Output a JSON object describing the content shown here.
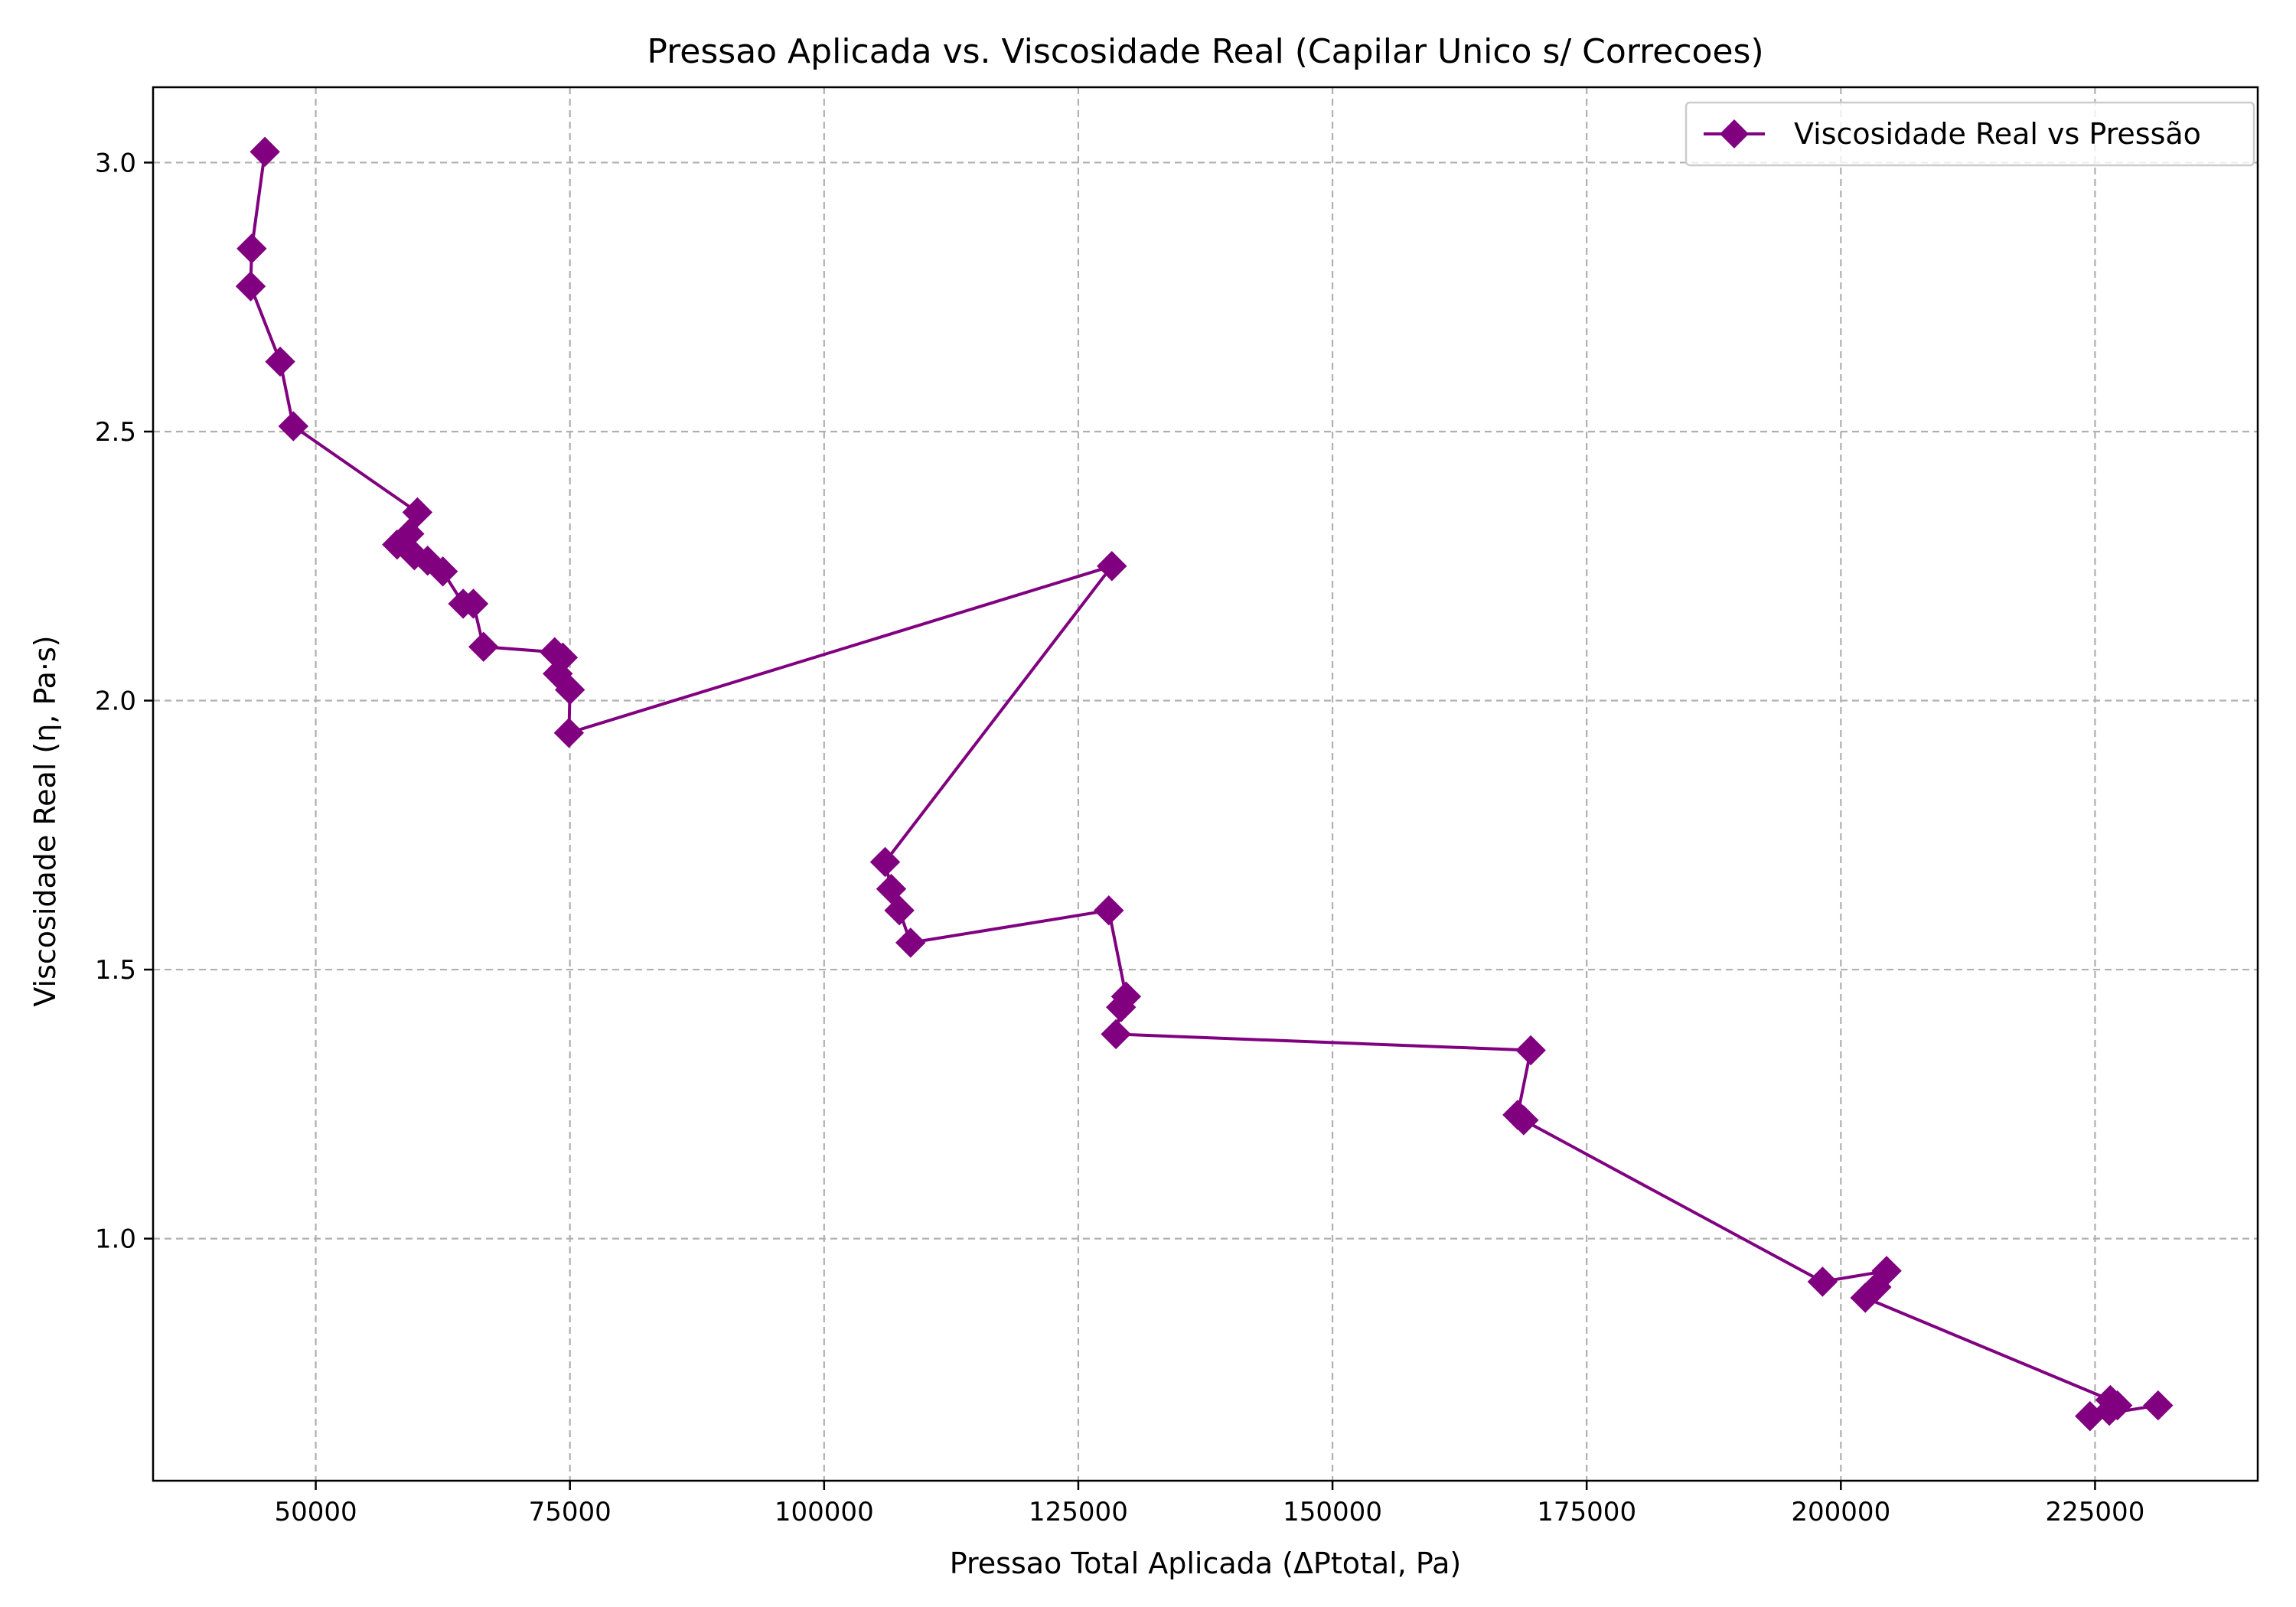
{
  "chart_data": {
    "type": "line",
    "title": "Pressao Aplicada vs. Viscosidade Real (Capilar Unico s/ Correcoes)",
    "xlabel": "Pressao Total Aplicada (ΔPtotal, Pa)",
    "ylabel": "Viscosidade Real (η, Pa·s)",
    "xlim": [
      34000,
      241000
    ],
    "ylim": [
      0.55,
      3.14
    ],
    "x_ticks": [
      50000,
      75000,
      100000,
      125000,
      150000,
      175000,
      200000,
      225000
    ],
    "y_ticks": [
      1.0,
      1.5,
      2.0,
      2.5,
      3.0
    ],
    "x_tick_labels": [
      "50000",
      "75000",
      "100000",
      "125000",
      "150000",
      "175000",
      "200000",
      "225000"
    ],
    "y_tick_labels": [
      "1.0",
      "1.5",
      "2.0",
      "2.5",
      "3.0"
    ],
    "grid": true,
    "legend_position": "top-right",
    "series": [
      {
        "name": "Viscosidade Real vs Pressão",
        "color": "#800080",
        "marker": "diamond",
        "x": [
          45000,
          43700,
          43600,
          46500,
          47800,
          60000,
          59200,
          58000,
          59700,
          61000,
          62500,
          64500,
          65500,
          66500,
          73500,
          74300,
          73800,
          75000,
          74900,
          128300,
          106000,
          106600,
          107400,
          108500,
          128000,
          129700,
          129200,
          128700,
          169500,
          168200,
          168800,
          198200,
          204500,
          203500,
          202400,
          226500,
          227200,
          226400,
          224500,
          231200
        ],
        "y": [
          3.02,
          2.84,
          2.77,
          2.63,
          2.51,
          2.35,
          2.31,
          2.29,
          2.27,
          2.26,
          2.24,
          2.18,
          2.18,
          2.1,
          2.09,
          2.08,
          2.05,
          2.02,
          1.94,
          2.25,
          1.7,
          1.65,
          1.61,
          1.55,
          1.61,
          1.45,
          1.43,
          1.38,
          1.35,
          1.23,
          1.22,
          0.92,
          0.94,
          0.91,
          0.89,
          0.7,
          0.69,
          0.68,
          0.67,
          0.69
        ]
      }
    ]
  }
}
